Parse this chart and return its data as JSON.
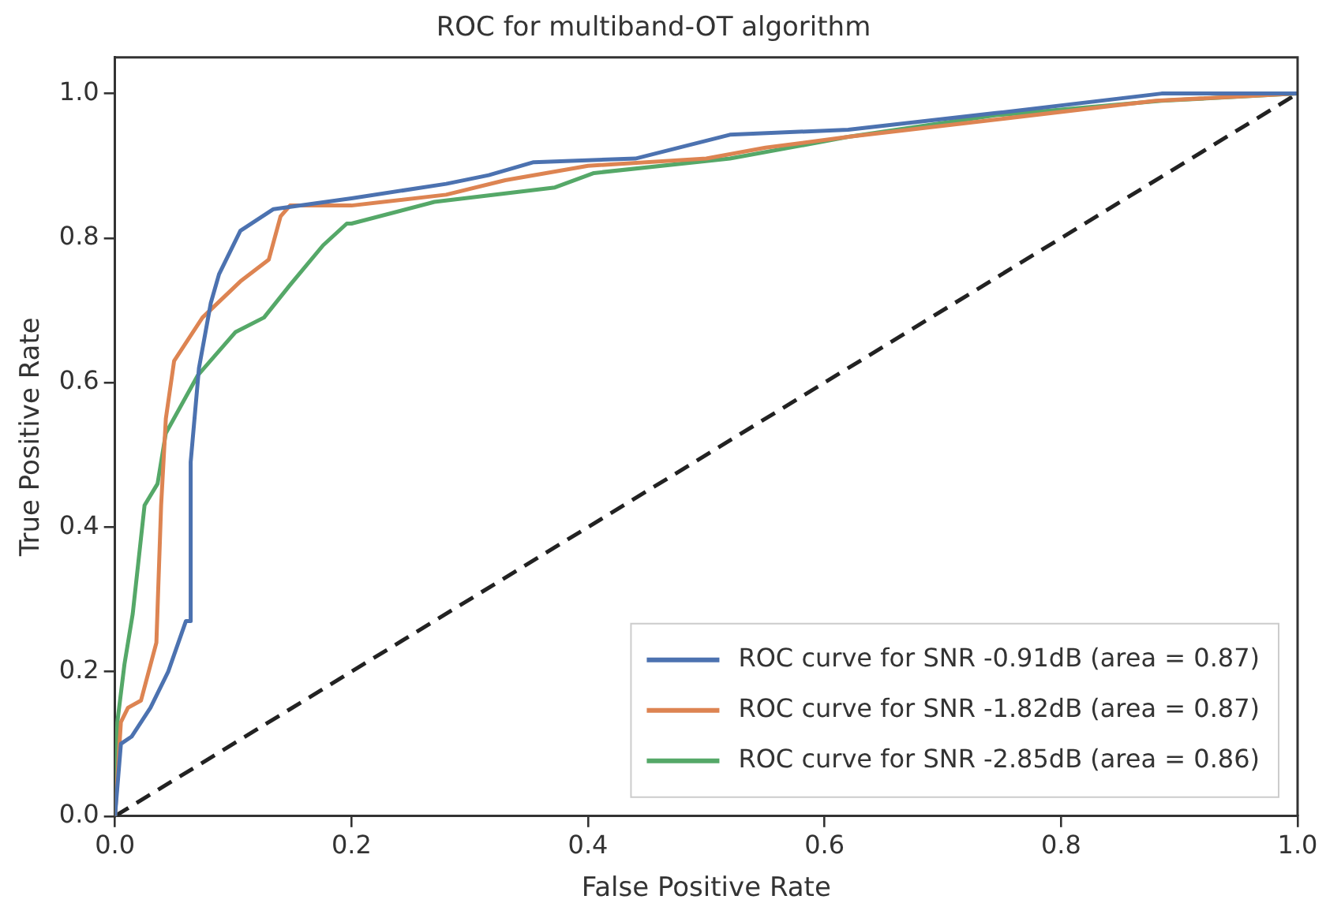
{
  "chart_data": {
    "type": "line",
    "title": "ROC for multiband-OT algorithm",
    "xlabel": "False Positive Rate",
    "ylabel": "True Positive Rate",
    "xlim": [
      0,
      1
    ],
    "ylim": [
      0,
      1.05
    ],
    "xticks": [
      {
        "value": 0,
        "label": "0.0"
      },
      {
        "value": 0.2,
        "label": "0.2"
      },
      {
        "value": 0.4,
        "label": "0.4"
      },
      {
        "value": 0.6,
        "label": "0.6"
      },
      {
        "value": 0.8,
        "label": "0.8"
      },
      {
        "value": 1,
        "label": "1.0"
      }
    ],
    "yticks": [
      {
        "value": 0,
        "label": "0.0"
      },
      {
        "value": 0.2,
        "label": "0.2"
      },
      {
        "value": 0.4,
        "label": "0.4"
      },
      {
        "value": 0.6,
        "label": "0.6"
      },
      {
        "value": 0.8,
        "label": "0.8"
      },
      {
        "value": 1,
        "label": "1.0"
      }
    ],
    "grid": false,
    "legend": "bottom right",
    "marker": "none",
    "series": [
      {
        "name": "ROC curve for SNR -0.91dB (area = 0.87)",
        "color": "#4c72b0",
        "x": [
          0,
          0.005,
          0.014,
          0.03,
          0.045,
          0.06,
          0.064,
          0.064,
          0.071,
          0.081,
          0.088,
          0.106,
          0.134,
          0.2,
          0.28,
          0.316,
          0.354,
          0.44,
          0.52,
          0.62,
          0.745,
          0.885,
          1
        ],
        "values": [
          0,
          0.1,
          0.11,
          0.15,
          0.2,
          0.27,
          0.27,
          0.49,
          0.62,
          0.71,
          0.75,
          0.81,
          0.84,
          0.855,
          0.875,
          0.887,
          0.905,
          0.91,
          0.943,
          0.95,
          0.973,
          1,
          1
        ]
      },
      {
        "name": "ROC curve for SNR -1.82dB (area = 0.87)",
        "color": "#dd8452",
        "x": [
          0,
          0.005,
          0.011,
          0.022,
          0.035,
          0.039,
          0.043,
          0.05,
          0.074,
          0.106,
          0.13,
          0.14,
          0.148,
          0.2,
          0.28,
          0.33,
          0.4,
          0.5,
          0.55,
          0.62,
          0.75,
          0.88,
          1
        ],
        "values": [
          0,
          0.13,
          0.15,
          0.16,
          0.24,
          0.43,
          0.55,
          0.63,
          0.69,
          0.74,
          0.77,
          0.83,
          0.845,
          0.845,
          0.86,
          0.88,
          0.9,
          0.91,
          0.925,
          0.94,
          0.965,
          0.99,
          1
        ]
      },
      {
        "name": "ROC curve for SNR -2.85dB (area = 0.86)",
        "color": "#55a868",
        "x": [
          0,
          0.002,
          0.008,
          0.015,
          0.025,
          0.036,
          0.043,
          0.07,
          0.102,
          0.126,
          0.148,
          0.176,
          0.196,
          0.2,
          0.27,
          0.372,
          0.405,
          0.52,
          0.62,
          0.745,
          0.885,
          1
        ],
        "values": [
          0,
          0.13,
          0.21,
          0.28,
          0.43,
          0.46,
          0.53,
          0.61,
          0.67,
          0.69,
          0.735,
          0.79,
          0.82,
          0.82,
          0.85,
          0.87,
          0.89,
          0.91,
          0.94,
          0.97,
          0.99,
          1
        ]
      },
      {
        "type": "line",
        "color": "#222222",
        "line_style": "dashed",
        "x": [
          0,
          1
        ],
        "values": [
          0,
          1
        ]
      }
    ]
  }
}
